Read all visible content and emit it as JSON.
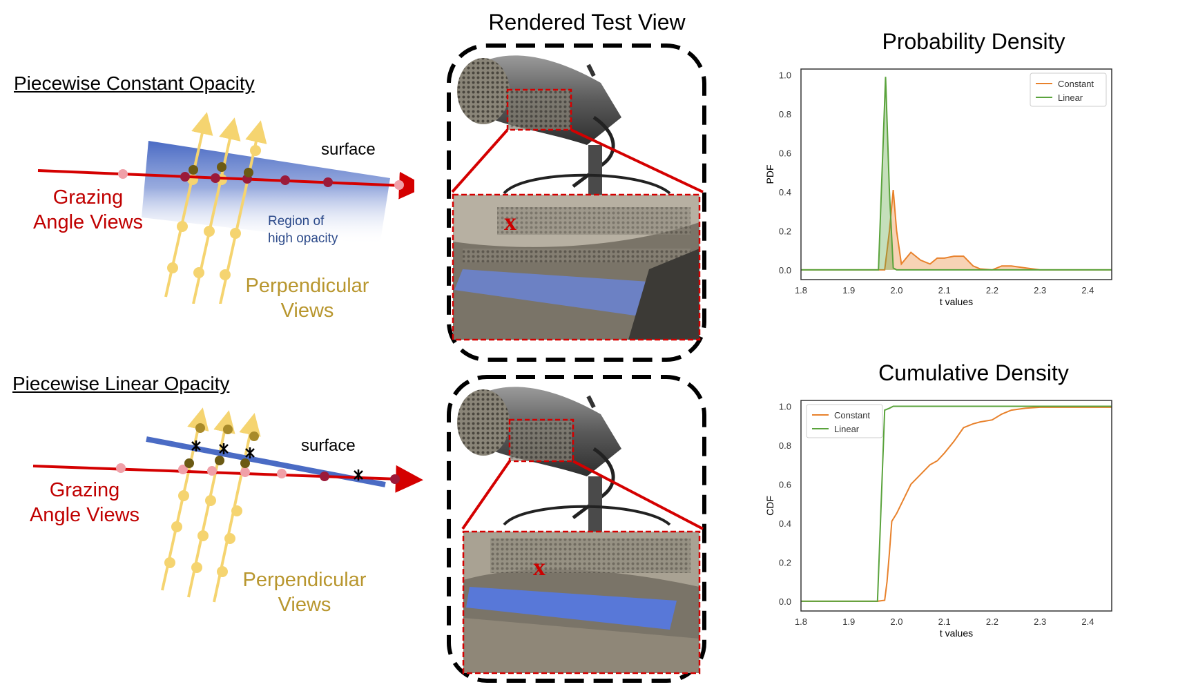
{
  "left": {
    "top": {
      "heading": "Piecewise Constant Opacity",
      "surface_label": "surface",
      "grazing_line1": "Grazing",
      "grazing_line2": "Angle Views",
      "region_line1": "Region of",
      "region_line2": "high opacity",
      "perp_line1": "Perpendicular",
      "perp_line2": "Views"
    },
    "bottom": {
      "heading": "Piecewise Linear Opacity",
      "surface_label": "surface",
      "grazing_line1": "Grazing",
      "grazing_line2": "Angle Views",
      "perp_line1": "Perpendicular",
      "perp_line2": "Views"
    }
  },
  "middle": {
    "title": "Rendered Test View",
    "marker_top": "x",
    "marker_bottom": "x"
  },
  "colors": {
    "constant": "#e8812b",
    "linear": "#5aa33c",
    "ray_red": "#d40000",
    "gold": "#f5d470",
    "blue_surface": "#4a6bc4"
  },
  "chart_data": [
    {
      "type": "area",
      "title": "Probability Density",
      "xlabel": "t values",
      "ylabel": "PDF",
      "xlim": [
        1.8,
        2.45
      ],
      "ylim": [
        0,
        1.0
      ],
      "xticks": [
        "1.8",
        "1.9",
        "2.0",
        "2.1",
        "2.2",
        "2.3",
        "2.4"
      ],
      "yticks": [
        "0.0",
        "0.2",
        "0.4",
        "0.6",
        "0.8",
        "1.0"
      ],
      "legend_position": "top-right",
      "series": [
        {
          "name": "Constant",
          "color": "#e8812b",
          "x": [
            1.8,
            1.96,
            1.975,
            1.985,
            1.993,
            2.0,
            2.01,
            2.02,
            2.03,
            2.05,
            2.07,
            2.085,
            2.1,
            2.12,
            2.14,
            2.16,
            2.175,
            2.2,
            2.22,
            2.24,
            2.27,
            2.3,
            2.45
          ],
          "y": [
            0,
            0,
            0,
            0.2,
            0.41,
            0.2,
            0.03,
            0.06,
            0.09,
            0.05,
            0.03,
            0.06,
            0.06,
            0.07,
            0.07,
            0.02,
            0.005,
            0.0,
            0.02,
            0.02,
            0.01,
            0,
            0
          ]
        },
        {
          "name": "Linear",
          "color": "#5aa33c",
          "x": [
            1.8,
            1.95,
            1.962,
            1.977,
            1.985,
            1.993,
            2.0,
            2.45
          ],
          "y": [
            0,
            0,
            0,
            0.99,
            0.4,
            0.01,
            0,
            0
          ]
        }
      ]
    },
    {
      "type": "line",
      "title": "Cumulative Density",
      "xlabel": "t values",
      "ylabel": "CDF",
      "xlim": [
        1.8,
        2.45
      ],
      "ylim": [
        0,
        1.0
      ],
      "xticks": [
        "1.8",
        "1.9",
        "2.0",
        "2.1",
        "2.2",
        "2.3",
        "2.4"
      ],
      "yticks": [
        "0.0",
        "0.2",
        "0.4",
        "0.6",
        "0.8",
        "1.0"
      ],
      "legend_position": "top-left",
      "series": [
        {
          "name": "Constant",
          "color": "#e8812b",
          "x": [
            1.8,
            1.96,
            1.975,
            1.98,
            1.985,
            1.99,
            2.0,
            2.01,
            2.02,
            2.03,
            2.05,
            2.07,
            2.085,
            2.1,
            2.12,
            2.14,
            2.16,
            2.175,
            2.2,
            2.22,
            2.24,
            2.27,
            2.3,
            2.45
          ],
          "y": [
            0,
            0,
            0.005,
            0.1,
            0.25,
            0.41,
            0.45,
            0.5,
            0.55,
            0.6,
            0.65,
            0.7,
            0.72,
            0.76,
            0.82,
            0.89,
            0.91,
            0.92,
            0.93,
            0.96,
            0.98,
            0.99,
            0.995,
            0.995
          ]
        },
        {
          "name": "Linear",
          "color": "#5aa33c",
          "x": [
            1.8,
            1.96,
            1.975,
            1.985,
            1.993,
            2.0,
            2.45
          ],
          "y": [
            0,
            0,
            0.98,
            0.99,
            1.0,
            1.0,
            1.0
          ]
        }
      ]
    }
  ]
}
